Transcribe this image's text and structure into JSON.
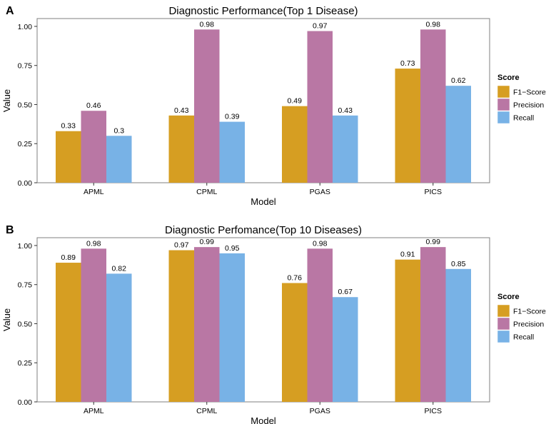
{
  "figure": {
    "legend_title": "Score",
    "colors": {
      "F1-Score": "#d69e22",
      "Precision": "#b977a4",
      "Recall": "#78b2e6"
    }
  },
  "chart_data": [
    {
      "panel": "A",
      "type": "bar",
      "title": "Diagnostic Performance(Top 1 Disease)",
      "xlabel": "Model",
      "ylabel": "Value",
      "ylim": [
        0,
        1.05
      ],
      "yticks": [
        "0.00",
        "0.25",
        "0.50",
        "0.75",
        "1.00"
      ],
      "categories": [
        "APML",
        "CPML",
        "PGAS",
        "PICS"
      ],
      "series": [
        {
          "name": "F1−Score",
          "values": [
            0.33,
            0.43,
            0.49,
            0.73
          ],
          "labels": [
            "0.33",
            "0.43",
            "0.49",
            "0.73"
          ]
        },
        {
          "name": "Precision",
          "values": [
            0.46,
            0.98,
            0.97,
            0.98
          ],
          "labels": [
            "0.46",
            "0.98",
            "0.97",
            "0.98"
          ]
        },
        {
          "name": "Recall",
          "values": [
            0.3,
            0.39,
            0.43,
            0.62
          ],
          "labels": [
            "0.3",
            "0.39",
            "0.43",
            "0.62"
          ]
        }
      ],
      "legend_position": "right"
    },
    {
      "panel": "B",
      "type": "bar",
      "title": "Diagnostic Perfomance(Top 10 Diseases)",
      "xlabel": "Model",
      "ylabel": "Value",
      "ylim": [
        0,
        1.05
      ],
      "yticks": [
        "0.00",
        "0.25",
        "0.50",
        "0.75",
        "1.00"
      ],
      "categories": [
        "APML",
        "CPML",
        "PGAS",
        "PICS"
      ],
      "series": [
        {
          "name": "F1−Score",
          "values": [
            0.89,
            0.97,
            0.76,
            0.91
          ],
          "labels": [
            "0.89",
            "0.97",
            "0.76",
            "0.91"
          ]
        },
        {
          "name": "Precision",
          "values": [
            0.98,
            0.99,
            0.98,
            0.99
          ],
          "labels": [
            "0.98",
            "0.99",
            "0.98",
            "0.99"
          ]
        },
        {
          "name": "Recall",
          "values": [
            0.82,
            0.95,
            0.67,
            0.85
          ],
          "labels": [
            "0.82",
            "0.95",
            "0.67",
            "0.85"
          ]
        }
      ],
      "legend_position": "right"
    }
  ]
}
